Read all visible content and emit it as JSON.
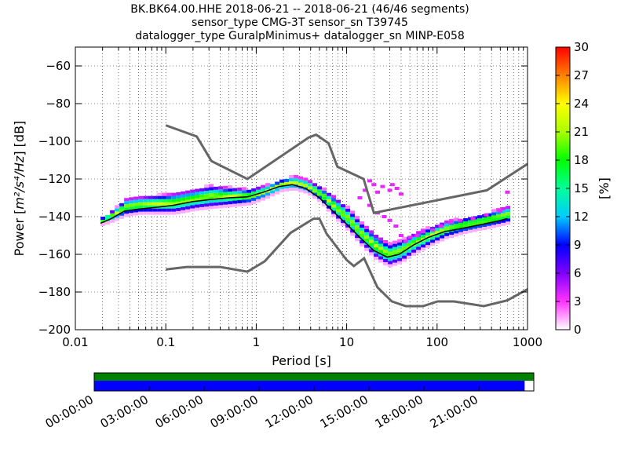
{
  "title_lines": [
    "BK.BK64.00.HHE   2018-06-21 -- 2018-06-21  (46/46 segments)",
    "sensor_type CMG-3T sensor_sn T39745",
    "datalogger_type GuralpMinimus+ datalogger_sn MINP-E058"
  ],
  "chart_data": {
    "type": "heatmap",
    "title": "BK.BK64.00.HHE   2018-06-21 -- 2018-06-21  (46/46 segments)",
    "xlabel": "Period [s]",
    "ylabel": "Power [m^2/s^4/Hz] [dB]",
    "ylabel_parts": {
      "prefix": "Power [",
      "unit": "m²/s⁴/Hz",
      "suffix": "] [dB]"
    },
    "x_scale": "log",
    "xlim": [
      0.01,
      1000
    ],
    "ylim": [
      -200,
      -50
    ],
    "x_ticks": [
      0.01,
      0.1,
      1,
      10,
      100,
      1000
    ],
    "x_tick_labels": [
      "0.01",
      "0.1",
      "1",
      "10",
      "100",
      "1000"
    ],
    "y_ticks": [
      -200,
      -180,
      -160,
      -140,
      -120,
      -100,
      -80,
      -60
    ],
    "y_tick_labels": [
      "−200",
      "−180",
      "−160",
      "−140",
      "−120",
      "−100",
      "−80",
      "−60"
    ],
    "grid": "dotted",
    "colorbar": {
      "label": "[%]",
      "range": [
        0,
        30
      ],
      "ticks": [
        0,
        3,
        6,
        9,
        12,
        15,
        18,
        21,
        24,
        27,
        30
      ],
      "tick_labels": [
        "0",
        "3",
        "6",
        "9",
        "12",
        "15",
        "18",
        "21",
        "24",
        "27",
        "30"
      ],
      "colormap": [
        "#ffffff",
        "#ff33ff",
        "#8000ff",
        "#0000ff",
        "#00ccff",
        "#00ff99",
        "#00ff00",
        "#aaff00",
        "#ffff00",
        "#ff8000",
        "#ff0000"
      ]
    },
    "nhnm": {
      "name": "NHNM",
      "color": "#666666",
      "points": [
        [
          0.1,
          -91.5
        ],
        [
          0.22,
          -97.4
        ],
        [
          0.32,
          -110.5
        ],
        [
          0.8,
          -120
        ],
        [
          3.8,
          -98
        ],
        [
          4.6,
          -96.5
        ],
        [
          6.3,
          -101
        ],
        [
          7.9,
          -113.5
        ],
        [
          15.4,
          -120
        ],
        [
          20,
          -138
        ],
        [
          354.8,
          -126
        ],
        [
          1000,
          -112
        ]
      ]
    },
    "nlnm": {
      "name": "NLNM",
      "color": "#666666",
      "points": [
        [
          0.1,
          -168
        ],
        [
          0.17,
          -166.7
        ],
        [
          0.4,
          -166.7
        ],
        [
          0.8,
          -169.2
        ],
        [
          1.24,
          -163.7
        ],
        [
          2.4,
          -148.6
        ],
        [
          4.3,
          -141.1
        ],
        [
          5.0,
          -141.1
        ],
        [
          6.0,
          -149
        ],
        [
          10.0,
          -163
        ],
        [
          12.0,
          -166.2
        ],
        [
          15.6,
          -162.1
        ],
        [
          21.9,
          -177.5
        ],
        [
          31.6,
          -185
        ],
        [
          45,
          -187.5
        ],
        [
          70,
          -187.5
        ],
        [
          101,
          -185
        ],
        [
          154,
          -185
        ],
        [
          328,
          -187.5
        ],
        [
          600,
          -184.4
        ],
        [
          1000,
          -178.5
        ]
      ]
    },
    "median_curve": {
      "name": "median",
      "color": "#000000",
      "points": [
        [
          0.019,
          -143.5
        ],
        [
          0.025,
          -141
        ],
        [
          0.035,
          -137
        ],
        [
          0.05,
          -136
        ],
        [
          0.08,
          -135
        ],
        [
          0.12,
          -134
        ],
        [
          0.2,
          -132
        ],
        [
          0.3,
          -131
        ],
        [
          0.5,
          -130
        ],
        [
          0.8,
          -129.5
        ],
        [
          1.2,
          -127
        ],
        [
          1.8,
          -124
        ],
        [
          2.5,
          -123
        ],
        [
          3.5,
          -125
        ],
        [
          5,
          -130
        ],
        [
          7,
          -137
        ],
        [
          10,
          -144
        ],
        [
          14,
          -151
        ],
        [
          20,
          -158
        ],
        [
          28,
          -161.5
        ],
        [
          38,
          -160
        ],
        [
          55,
          -155
        ],
        [
          80,
          -151
        ],
        [
          120,
          -148
        ],
        [
          200,
          -146
        ],
        [
          320,
          -144
        ],
        [
          500,
          -142
        ],
        [
          600,
          -141
        ]
      ]
    },
    "pdf_band": {
      "points": [
        [
          0.019,
          -145,
          -141
        ],
        [
          0.025,
          -143,
          -137
        ],
        [
          0.035,
          -140,
          -131
        ],
        [
          0.05,
          -139,
          -130
        ],
        [
          0.08,
          -139,
          -129
        ],
        [
          0.12,
          -139,
          -128
        ],
        [
          0.2,
          -137,
          -126
        ],
        [
          0.3,
          -136,
          -124
        ],
        [
          0.5,
          -135,
          -125
        ],
        [
          0.8,
          -134,
          -126
        ],
        [
          1.2,
          -131,
          -124
        ],
        [
          1.8,
          -127,
          -121
        ],
        [
          2.5,
          -126,
          -119
        ],
        [
          3.5,
          -128,
          -121
        ],
        [
          5,
          -133,
          -125
        ],
        [
          7,
          -141,
          -130
        ],
        [
          10,
          -148,
          -136
        ],
        [
          14,
          -156,
          -144
        ],
        [
          20,
          -163,
          -150
        ],
        [
          28,
          -167,
          -155
        ],
        [
          38,
          -165,
          -153
        ],
        [
          55,
          -160,
          -149
        ],
        [
          80,
          -156,
          -146
        ],
        [
          120,
          -152,
          -143
        ],
        [
          200,
          -149,
          -141
        ],
        [
          320,
          -147,
          -139
        ],
        [
          500,
          -145,
          -136
        ],
        [
          600,
          -144,
          -135
        ]
      ]
    },
    "scatter_outliers": {
      "points": [
        [
          14,
          -130
        ],
        [
          16,
          -126
        ],
        [
          18,
          -121
        ],
        [
          20,
          -123
        ],
        [
          22,
          -127
        ],
        [
          25,
          -124
        ],
        [
          30,
          -126
        ],
        [
          32,
          -123
        ],
        [
          36,
          -125
        ],
        [
          40,
          -128
        ],
        [
          18,
          -134
        ],
        [
          22,
          -138
        ],
        [
          26,
          -140
        ],
        [
          30,
          -142
        ],
        [
          35,
          -145
        ],
        [
          40,
          -150
        ],
        [
          45,
          -153
        ],
        [
          50,
          -151
        ],
        [
          60,
          -150
        ],
        [
          70,
          -148
        ],
        [
          90,
          -147
        ],
        [
          110,
          -145
        ],
        [
          140,
          -143
        ],
        [
          180,
          -142
        ],
        [
          250,
          -141
        ],
        [
          350,
          -139
        ],
        [
          500,
          -137
        ],
        [
          600,
          -127
        ]
      ]
    },
    "timeline": {
      "type": "coverage",
      "range_hours": [
        0,
        24
      ],
      "tick_hours": [
        0,
        3,
        6,
        9,
        12,
        15,
        18,
        21
      ],
      "tick_labels": [
        "00:00:00",
        "03:00:00",
        "06:00:00",
        "09:00:00",
        "12:00:00",
        "15:00:00",
        "18:00:00",
        "21:00:00"
      ],
      "data_coverage": {
        "color": "#008000",
        "start_hour": 0,
        "end_hour": 24
      },
      "psd_coverage": {
        "color": "#0000ff",
        "start_hour": 0,
        "end_hour": 23.5
      }
    }
  }
}
